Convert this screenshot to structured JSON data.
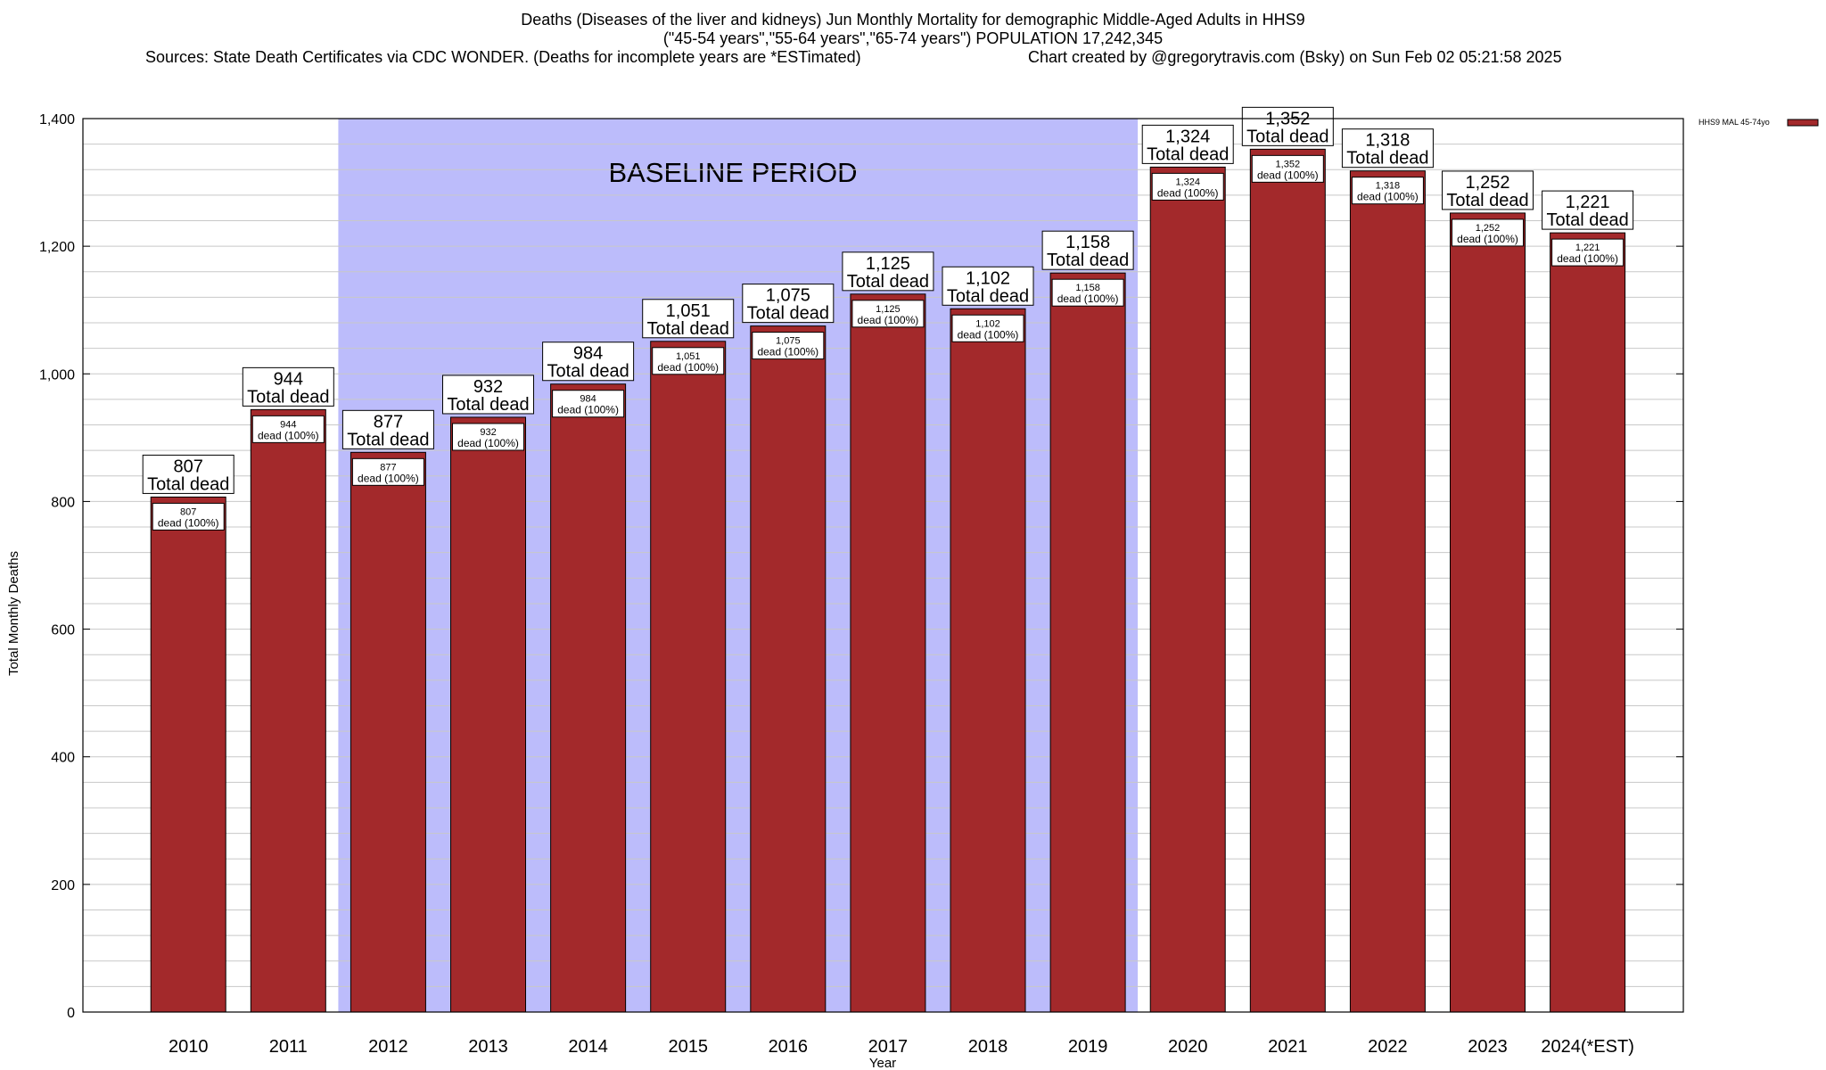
{
  "chart_data": {
    "type": "bar",
    "title_lines": [
      "Deaths (Diseases of the liver and kidneys) Jun Monthly Mortality for demographic Middle-Aged Adults in HHS9",
      "(\"45-54 years\",\"55-64 years\",\"65-74 years\") POPULATION 17,242,345"
    ],
    "sources": "Sources: State Death Certificates via CDC WONDER. (Deaths for incomplete years are *ESTimated)",
    "credit": "Chart created by @gregorytravis.com (Bsky) on Sun Feb 02 05:21:58 2025",
    "xlabel": "Year",
    "ylabel": "Total Monthly Deaths",
    "ylim": [
      0,
      1400
    ],
    "yticks": [
      0,
      200,
      400,
      600,
      800,
      1000,
      1200,
      1400
    ],
    "ytick_labels": [
      "0",
      "200",
      "400",
      "600",
      "800",
      "1,000",
      "1,200",
      "1,400"
    ],
    "categories": [
      "2010",
      "2011",
      "2012",
      "2013",
      "2014",
      "2015",
      "2016",
      "2017",
      "2018",
      "2019",
      "2020",
      "2021",
      "2022",
      "2023",
      "2024(*EST)"
    ],
    "series": [
      {
        "name": "HHS9 MAL 45-74yo",
        "color": "#a3292b",
        "values": [
          807,
          944,
          877,
          932,
          984,
          1051,
          1075,
          1125,
          1102,
          1158,
          1324,
          1352,
          1318,
          1252,
          1221
        ]
      }
    ],
    "value_labels": [
      "807",
      "944",
      "877",
      "932",
      "984",
      "1,051",
      "1,075",
      "1,125",
      "1,102",
      "1,158",
      "1,324",
      "1,352",
      "1,318",
      "1,252",
      "1,221"
    ],
    "total_label_suffix": "Total dead",
    "inner_label_suffix": "dead (100%)",
    "baseline": {
      "label": "BASELINE PERIOD",
      "start_category": "2012",
      "end_category": "2019",
      "color": "#bcbcfb"
    },
    "grid": true,
    "legend_position": "top-right"
  }
}
